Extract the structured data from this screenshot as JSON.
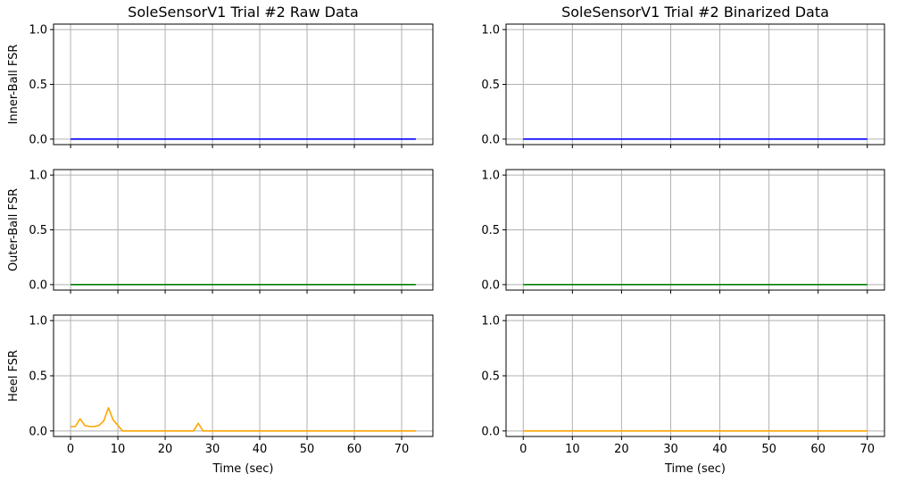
{
  "figure": {
    "titles": [
      "SoleSensorV1 Trial #2 Raw Data",
      "SoleSensorV1 Trial #2 Binarized Data"
    ]
  },
  "chart_data": [
    {
      "type": "line",
      "title": "SoleSensorV1 Trial #2 Raw Data",
      "ylabel": "Inner-Ball FSR",
      "xlabel": "",
      "xlim": [
        -3.6,
        76.6
      ],
      "ylim": [
        -0.05,
        1.05
      ],
      "xticks": [
        0,
        10,
        20,
        30,
        40,
        50,
        60,
        70
      ],
      "xtick_labels_visible": false,
      "yticks": [
        0.0,
        0.5,
        1.0
      ],
      "ytick_labels": [
        "0.0",
        "0.5",
        "1.0"
      ],
      "grid": true,
      "series": [
        {
          "color": "#0000ff",
          "x": [
            0,
            73
          ],
          "y": [
            0,
            0
          ]
        }
      ]
    },
    {
      "type": "line",
      "title": "SoleSensorV1 Trial #2 Binarized Data",
      "ylabel": "",
      "xlabel": "",
      "xlim": [
        -3.5,
        73.5
      ],
      "ylim": [
        -0.05,
        1.05
      ],
      "xticks": [
        0,
        10,
        20,
        30,
        40,
        50,
        60,
        70
      ],
      "xtick_labels_visible": false,
      "yticks": [
        0.0,
        0.5,
        1.0
      ],
      "ytick_labels": [
        "0.0",
        "0.5",
        "1.0"
      ],
      "grid": true,
      "series": [
        {
          "color": "#0000ff",
          "x": [
            0,
            70
          ],
          "y": [
            0,
            0
          ]
        }
      ]
    },
    {
      "type": "line",
      "title": "",
      "ylabel": "Outer-Ball FSR",
      "xlabel": "",
      "xlim": [
        -3.6,
        76.6
      ],
      "ylim": [
        -0.05,
        1.05
      ],
      "xticks": [
        0,
        10,
        20,
        30,
        40,
        50,
        60,
        70
      ],
      "xtick_labels_visible": false,
      "yticks": [
        0.0,
        0.5,
        1.0
      ],
      "ytick_labels": [
        "0.0",
        "0.5",
        "1.0"
      ],
      "grid": true,
      "series": [
        {
          "color": "#008000",
          "x": [
            0,
            73
          ],
          "y": [
            0,
            0
          ]
        }
      ]
    },
    {
      "type": "line",
      "title": "",
      "ylabel": "",
      "xlabel": "",
      "xlim": [
        -3.5,
        73.5
      ],
      "ylim": [
        -0.05,
        1.05
      ],
      "xticks": [
        0,
        10,
        20,
        30,
        40,
        50,
        60,
        70
      ],
      "xtick_labels_visible": false,
      "yticks": [
        0.0,
        0.5,
        1.0
      ],
      "ytick_labels": [
        "0.0",
        "0.5",
        "1.0"
      ],
      "grid": true,
      "series": [
        {
          "color": "#008000",
          "x": [
            0,
            70
          ],
          "y": [
            0,
            0
          ]
        }
      ]
    },
    {
      "type": "line",
      "title": "",
      "ylabel": "Heel FSR",
      "xlabel": "Time (sec)",
      "xlim": [
        -3.6,
        76.6
      ],
      "ylim": [
        -0.05,
        1.05
      ],
      "xticks": [
        0,
        10,
        20,
        30,
        40,
        50,
        60,
        70
      ],
      "xtick_labels": [
        "0",
        "10",
        "20",
        "30",
        "40",
        "50",
        "60",
        "70"
      ],
      "xtick_labels_visible": true,
      "yticks": [
        0.0,
        0.5,
        1.0
      ],
      "ytick_labels": [
        "0.0",
        "0.5",
        "1.0"
      ],
      "grid": true,
      "series": [
        {
          "color": "#ffa500",
          "x": [
            0,
            1,
            2,
            3,
            4,
            5,
            6,
            7,
            8,
            9,
            10,
            11,
            12,
            25,
            26,
            27,
            28,
            29,
            73
          ],
          "y": [
            0.04,
            0.04,
            0.11,
            0.05,
            0.04,
            0.04,
            0.05,
            0.09,
            0.21,
            0.1,
            0.05,
            0.0,
            0.0,
            0.0,
            0.0,
            0.07,
            0.0,
            0.0,
            0.0
          ]
        }
      ]
    },
    {
      "type": "line",
      "title": "",
      "ylabel": "",
      "xlabel": "Time (sec)",
      "xlim": [
        -3.5,
        73.5
      ],
      "ylim": [
        -0.05,
        1.05
      ],
      "xticks": [
        0,
        10,
        20,
        30,
        40,
        50,
        60,
        70
      ],
      "xtick_labels": [
        "0",
        "10",
        "20",
        "30",
        "40",
        "50",
        "60",
        "70"
      ],
      "xtick_labels_visible": true,
      "yticks": [
        0.0,
        0.5,
        1.0
      ],
      "ytick_labels": [
        "0.0",
        "0.5",
        "1.0"
      ],
      "grid": true,
      "series": [
        {
          "color": "#ffa500",
          "x": [
            0,
            70
          ],
          "y": [
            0,
            0
          ]
        }
      ]
    }
  ]
}
